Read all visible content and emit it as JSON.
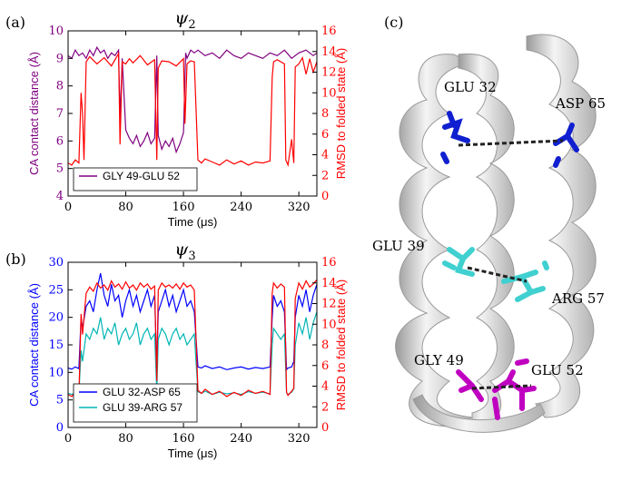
{
  "panel_labels": {
    "a": "(a)",
    "b": "(b)",
    "c": "(c)"
  },
  "colors": {
    "purple": "#800080",
    "red": "#ff0000",
    "blue": "#0000ff",
    "cyan": "#00b5b5",
    "ribbon": "#e8e8e8",
    "residue_blue": "#1020d0",
    "residue_cyan": "#40d0d0",
    "residue_magenta": "#c000c0"
  },
  "structure": {
    "labels": {
      "glu32": "GLU 32",
      "asp65": "ASP 65",
      "glu39": "GLU 39",
      "arg57": "ARG 57",
      "gly49": "GLY 49",
      "glu52": "GLU 52"
    }
  },
  "chart_data": [
    {
      "type": "line",
      "panel": "(a)",
      "title": "ψ",
      "title_sub": "2",
      "xlabel": "Time (μs)",
      "ylabel_left": "CA contact distance (Å)",
      "ylabel_right": "RMSD to folded state (Å)",
      "xlim": [
        0,
        345
      ],
      "ylim_left": [
        4,
        10
      ],
      "ylim_right": [
        0,
        16
      ],
      "xticks": [
        "0",
        "80",
        "160",
        "240",
        "320"
      ],
      "xtick_values": [
        0,
        80,
        160,
        240,
        320
      ],
      "yticks_left": [
        "4",
        "5",
        "6",
        "7",
        "8",
        "9",
        "10"
      ],
      "yticks_right": [
        "0",
        "2",
        "4",
        "6",
        "8",
        "10",
        "12",
        "14",
        "16"
      ],
      "legend": [
        "GLY 49-GLU 52"
      ],
      "series": [
        {
          "name": "GLY 49-GLU 52",
          "axis": "left",
          "color": "#800080",
          "x": [
            0,
            5,
            10,
            15,
            20,
            25,
            30,
            35,
            40,
            45,
            50,
            55,
            60,
            65,
            70,
            72,
            75,
            80,
            85,
            90,
            95,
            100,
            105,
            110,
            115,
            120,
            123,
            125,
            130,
            135,
            140,
            145,
            150,
            155,
            160,
            163,
            165,
            170,
            175,
            180,
            190,
            200,
            210,
            220,
            230,
            240,
            250,
            260,
            270,
            280,
            290,
            300,
            310,
            320,
            330,
            340,
            345
          ],
          "y": [
            9.1,
            9.0,
            9.3,
            9.1,
            9.2,
            9.0,
            9.3,
            9.1,
            9.4,
            9.2,
            9.3,
            9.0,
            9.2,
            9.1,
            9.3,
            6.8,
            9.0,
            6.4,
            6.1,
            5.9,
            6.2,
            5.8,
            6.0,
            6.3,
            5.9,
            6.1,
            9.1,
            6.2,
            5.7,
            6.0,
            5.8,
            6.1,
            5.6,
            5.9,
            6.3,
            9.2,
            9.0,
            9.3,
            9.2,
            9.3,
            9.1,
            9.2,
            9.0,
            9.3,
            9.1,
            9.0,
            9.2,
            9.1,
            9.0,
            9.2,
            9.1,
            9.3,
            9.0,
            9.2,
            9.3,
            9.1,
            9.2
          ]
        },
        {
          "name": "RMSD",
          "axis": "right",
          "color": "#ff0000",
          "x": [
            0,
            5,
            10,
            15,
            18,
            20,
            22,
            25,
            30,
            40,
            50,
            60,
            70,
            72,
            75,
            80,
            85,
            90,
            100,
            110,
            120,
            123,
            125,
            130,
            140,
            150,
            160,
            162,
            165,
            170,
            175,
            180,
            185,
            190,
            200,
            210,
            220,
            230,
            240,
            250,
            260,
            270,
            280,
            283,
            285,
            290,
            300,
            302,
            305,
            310,
            313,
            315,
            320,
            325,
            330,
            335,
            340,
            345
          ],
          "y": [
            3.2,
            3.0,
            3.5,
            3.2,
            10,
            8,
            3.5,
            13,
            13.5,
            12.8,
            13.4,
            12.6,
            13.8,
            5,
            13,
            12.8,
            13.3,
            12.9,
            13.6,
            12.7,
            13.2,
            3.5,
            12.4,
            13.1,
            13,
            12.6,
            13.3,
            7,
            12.8,
            13.1,
            13.0,
            3.5,
            3.2,
            3.6,
            3.3,
            3.0,
            3.5,
            3.1,
            3.4,
            3.0,
            3.3,
            3.2,
            3.4,
            11.5,
            13.0,
            13.2,
            12.8,
            3.5,
            3.0,
            5.5,
            3.2,
            12.5,
            12.8,
            13.4,
            11.8,
            13.3,
            12.0,
            13.0
          ]
        }
      ]
    },
    {
      "type": "line",
      "panel": "(b)",
      "title": "ψ",
      "title_sub": "3",
      "xlabel": "Time (μs)",
      "ylabel_left": "CA contact distance (Å)",
      "ylabel_right": "RMSD to folded state (Å)",
      "xlim": [
        0,
        345
      ],
      "ylim_left": [
        0,
        30
      ],
      "ylim_right": [
        0,
        16
      ],
      "xticks": [
        "0",
        "80",
        "160",
        "240",
        "320"
      ],
      "xtick_values": [
        0,
        80,
        160,
        240,
        320
      ],
      "yticks_left": [
        "0",
        "5",
        "10",
        "15",
        "20",
        "25",
        "30"
      ],
      "yticks_right": [
        "0",
        "2",
        "4",
        "6",
        "8",
        "10",
        "12",
        "14",
        "16"
      ],
      "legend": [
        "GLU 32-ASP 65",
        "GLU 39-ARG 57"
      ],
      "series": [
        {
          "name": "GLU 32-ASP 65",
          "axis": "left",
          "color": "#0000ff",
          "x": [
            0,
            5,
            10,
            15,
            18,
            20,
            25,
            30,
            35,
            40,
            45,
            50,
            55,
            60,
            65,
            70,
            75,
            80,
            85,
            90,
            95,
            100,
            105,
            110,
            115,
            120,
            123,
            125,
            130,
            135,
            140,
            145,
            150,
            155,
            160,
            165,
            170,
            175,
            180,
            185,
            190,
            200,
            210,
            220,
            230,
            240,
            250,
            260,
            270,
            280,
            283,
            285,
            290,
            295,
            300,
            303,
            305,
            310,
            313,
            315,
            320,
            325,
            330,
            335,
            340,
            345
          ],
          "y": [
            10.8,
            10.6,
            11,
            10.7,
            20,
            18,
            22,
            23,
            21,
            25,
            28,
            24,
            22,
            26,
            23,
            24,
            20,
            23,
            25,
            22,
            24,
            21,
            23,
            25,
            22,
            24,
            11,
            21,
            23,
            25,
            22,
            24,
            21,
            23,
            25,
            22,
            23,
            21,
            11,
            10.8,
            11.2,
            10.7,
            11,
            10.5,
            10.8,
            11,
            10.6,
            10.9,
            10.7,
            11,
            20,
            24,
            22,
            23,
            21,
            10.5,
            10.8,
            11,
            12,
            20,
            24,
            22,
            25,
            21,
            24,
            26
          ]
        },
        {
          "name": "GLU 39-ARG 57",
          "axis": "left",
          "color": "#00b5b5",
          "x": [
            0,
            5,
            10,
            15,
            18,
            20,
            25,
            30,
            35,
            40,
            45,
            50,
            55,
            60,
            65,
            70,
            75,
            80,
            85,
            90,
            95,
            100,
            105,
            110,
            115,
            120,
            123,
            125,
            130,
            135,
            140,
            145,
            150,
            155,
            160,
            165,
            170,
            175,
            180,
            185,
            190,
            200,
            210,
            220,
            230,
            240,
            250,
            260,
            270,
            280,
            283,
            285,
            290,
            295,
            300,
            303,
            305,
            310,
            313,
            315,
            320,
            325,
            330,
            335,
            340,
            345
          ],
          "y": [
            6.2,
            6.0,
            6.3,
            6.1,
            14,
            12,
            17,
            16,
            18,
            17,
            20,
            16,
            18,
            17,
            19,
            15,
            17,
            18,
            16,
            17,
            19,
            15,
            17,
            18,
            16,
            17,
            6.5,
            16,
            18,
            17,
            15,
            17,
            18,
            16,
            17,
            15,
            16,
            17,
            6.5,
            6.2,
            6.6,
            6.0,
            6.4,
            6.1,
            6.3,
            6.0,
            6.5,
            6.2,
            6.4,
            6.1,
            15,
            18,
            17,
            16,
            17,
            6.3,
            6.0,
            6.4,
            7,
            15,
            19,
            17,
            20,
            16,
            19,
            21
          ]
        },
        {
          "name": "RMSD",
          "axis": "right",
          "color": "#ff0000",
          "x": [
            0,
            5,
            10,
            15,
            18,
            20,
            25,
            30,
            35,
            40,
            45,
            50,
            55,
            60,
            65,
            70,
            75,
            80,
            85,
            90,
            95,
            100,
            105,
            110,
            115,
            120,
            123,
            125,
            130,
            135,
            140,
            145,
            150,
            155,
            160,
            165,
            170,
            175,
            180,
            185,
            190,
            200,
            210,
            220,
            230,
            240,
            250,
            260,
            270,
            280,
            283,
            285,
            290,
            295,
            300,
            303,
            305,
            310,
            313,
            315,
            320,
            325,
            330,
            335,
            340,
            345
          ],
          "y": [
            3.2,
            3.0,
            3.4,
            3.1,
            11,
            9,
            13,
            13.6,
            13.2,
            14,
            13.5,
            13.8,
            13.3,
            14.2,
            13.6,
            13.9,
            13.4,
            14.1,
            13.5,
            13.8,
            13.3,
            14,
            13.6,
            13.9,
            13.4,
            13.7,
            4.5,
            13.3,
            14,
            13.6,
            13.8,
            13.5,
            13.9,
            13.4,
            14,
            13.6,
            13.8,
            13.3,
            3.6,
            3.3,
            3.7,
            3.2,
            3.5,
            3.0,
            3.4,
            3.1,
            3.6,
            3.3,
            3.5,
            3.2,
            13,
            14,
            13.5,
            13.9,
            13.6,
            3.4,
            3.1,
            3.5,
            3.8,
            12.5,
            14,
            13.4,
            14.2,
            13.6,
            13.9,
            14.3
          ]
        }
      ]
    }
  ]
}
